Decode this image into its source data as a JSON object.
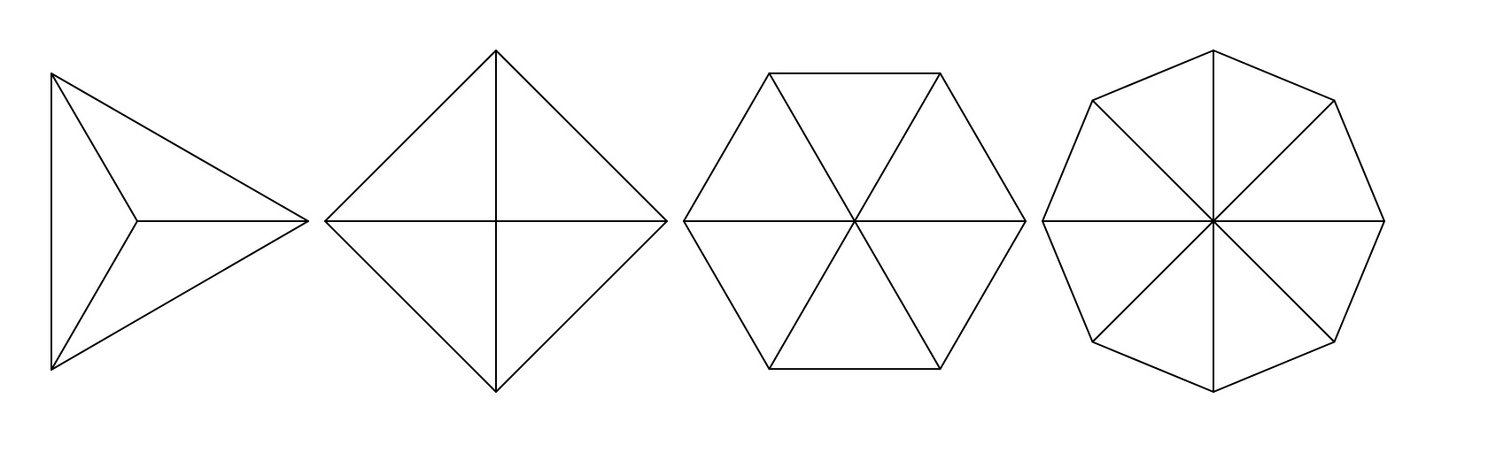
{
  "diagram": {
    "description_visible_text": "",
    "stroke_color": "#000000",
    "background_color": "#ffffff",
    "shapes": [
      {
        "name": "triangle",
        "sides": 3,
        "subdivided_from_center": true
      },
      {
        "name": "square",
        "sides": 4,
        "subdivided_from_center": true
      },
      {
        "name": "hexagon",
        "sides": 6,
        "subdivided_from_center": true
      },
      {
        "name": "octagon",
        "sides": 8,
        "subdivided_from_center": true
      }
    ]
  }
}
